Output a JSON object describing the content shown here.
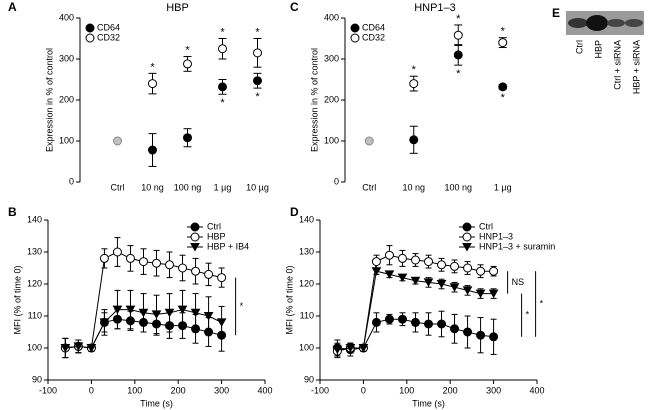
{
  "chart_data": [
    {
      "type": "category-dot",
      "panel": "A",
      "title": "HBP",
      "ylabel": "Expression in % of control",
      "categories": [
        "Ctrl",
        "10 ng",
        "100 ng",
        "1 µg",
        "10 µg"
      ],
      "ylim": [
        0,
        400
      ],
      "yticks": [
        0,
        100,
        200,
        300,
        400
      ],
      "control": {
        "value": 100,
        "color": "#c0c0c0"
      },
      "series": [
        {
          "name": "CD64",
          "marker": "circle-filled",
          "color": "#000000",
          "values": [
            null,
            78,
            108,
            232,
            247
          ],
          "errors": [
            null,
            40,
            22,
            18,
            18
          ],
          "significance": [
            null,
            null,
            null,
            "*",
            "*"
          ]
        },
        {
          "name": "CD32",
          "marker": "circle-open",
          "color": "#000000",
          "values": [
            null,
            240,
            288,
            325,
            315
          ],
          "errors": [
            null,
            25,
            18,
            25,
            35
          ],
          "significance": [
            null,
            "*",
            "*",
            "*",
            "*"
          ]
        }
      ]
    },
    {
      "type": "category-dot",
      "panel": "C",
      "title": "HNP1–3",
      "ylabel": "Expression in % of control",
      "categories": [
        "Ctrl",
        "10 ng",
        "100 ng",
        "1 µg"
      ],
      "ylim": [
        0,
        400
      ],
      "yticks": [
        0,
        100,
        200,
        300,
        400
      ],
      "control": {
        "value": 100,
        "color": "#c0c0c0"
      },
      "series": [
        {
          "name": "CD64",
          "marker": "circle-filled",
          "color": "#000000",
          "values": [
            null,
            103,
            310,
            232
          ],
          "errors": [
            null,
            33,
            25,
            5
          ],
          "significance": [
            null,
            null,
            "*",
            "*"
          ]
        },
        {
          "name": "CD32",
          "marker": "circle-open",
          "color": "#000000",
          "values": [
            null,
            240,
            358,
            340
          ],
          "errors": [
            null,
            18,
            25,
            12
          ],
          "significance": [
            null,
            "*",
            "*",
            "*"
          ]
        }
      ]
    },
    {
      "type": "line",
      "panel": "B",
      "xlabel": "Time (s)",
      "ylabel": "MFI (% of time 0)",
      "x": [
        -60,
        -30,
        0,
        30,
        60,
        90,
        120,
        150,
        180,
        210,
        240,
        270,
        300
      ],
      "xlim": [
        -100,
        400
      ],
      "xticks": [
        -100,
        0,
        100,
        200,
        300,
        400
      ],
      "ylim": [
        90,
        140
      ],
      "yticks": [
        90,
        100,
        110,
        120,
        130,
        140
      ],
      "series": [
        {
          "name": "Ctrl",
          "marker": "circle-filled",
          "color": "#000000",
          "values": [
            100,
            100.5,
            100,
            108,
            109,
            108.5,
            108,
            107.5,
            107,
            107,
            106,
            105,
            104
          ],
          "errors": [
            3,
            2,
            1,
            3,
            3,
            3,
            3,
            3.5,
            4,
            4,
            4.5,
            4.5,
            5
          ]
        },
        {
          "name": "HBP",
          "marker": "circle-open",
          "color": "#000000",
          "values": [
            100,
            100.5,
            100,
            128,
            130,
            128,
            127,
            126.5,
            126,
            125,
            124,
            123,
            122
          ],
          "errors": [
            3,
            2,
            1,
            3,
            4.5,
            4,
            4,
            4,
            4,
            4,
            4,
            3.5,
            3
          ]
        },
        {
          "name": "HBP + IB4",
          "marker": "triangle-down",
          "color": "#000000",
          "values": [
            100,
            100.5,
            100,
            108,
            112,
            112,
            111,
            110.5,
            111,
            112,
            111,
            110,
            108
          ],
          "errors": [
            3,
            2,
            1,
            4,
            6,
            6,
            6,
            6,
            6,
            6,
            6,
            6,
            5
          ]
        }
      ],
      "brackets": [
        {
          "between": [
            "HBP",
            "Ctrl"
          ],
          "label": "*"
        }
      ]
    },
    {
      "type": "line",
      "panel": "D",
      "xlabel": "Time (s)",
      "ylabel": "MFI (% of time 0)",
      "x": [
        -60,
        -30,
        0,
        30,
        60,
        90,
        120,
        150,
        180,
        210,
        240,
        270,
        300
      ],
      "xlim": [
        -100,
        400
      ],
      "xticks": [
        -100,
        0,
        100,
        200,
        300,
        400
      ],
      "ylim": [
        90,
        140
      ],
      "yticks": [
        90,
        100,
        110,
        120,
        130,
        140
      ],
      "series": [
        {
          "name": "Ctrl",
          "marker": "circle-filled",
          "color": "#000000",
          "values": [
            100,
            99.5,
            100,
            108,
            109,
            109,
            108,
            107.5,
            107.5,
            106,
            105,
            104,
            103.5
          ],
          "errors": [
            2.5,
            2,
            1,
            3,
            1.5,
            2,
            3,
            3.5,
            4,
            4.5,
            5,
            5.5,
            5.5
          ]
        },
        {
          "name": "HNP1–3",
          "marker": "circle-open",
          "color": "#000000",
          "values": [
            99,
            100,
            100,
            127,
            129,
            128,
            127.5,
            127,
            126,
            125.5,
            125,
            124,
            124
          ],
          "errors": [
            2,
            1.5,
            1,
            2,
            3,
            2.5,
            2,
            2,
            2,
            2,
            2,
            2,
            1.5
          ]
        },
        {
          "name": "HNP1–3 + suramin",
          "marker": "triangle-down",
          "color": "#000000",
          "values": [
            99.5,
            100,
            100,
            124,
            123,
            122,
            121,
            120.5,
            120,
            119,
            118,
            117,
            117
          ],
          "errors": [
            2,
            1.5,
            1,
            1,
            1,
            1,
            1,
            1.5,
            1.5,
            1.5,
            1.5,
            1.5,
            1.5
          ]
        }
      ],
      "brackets": [
        {
          "between": [
            "HNP1–3",
            "HNP1–3 + suramin"
          ],
          "label": "NS"
        },
        {
          "between": [
            "HNP1–3 + suramin",
            "Ctrl"
          ],
          "label": "*"
        },
        {
          "between": [
            "HNP1–3",
            "Ctrl"
          ],
          "label": "*"
        }
      ]
    }
  ],
  "blot": {
    "panel": "E",
    "lanes": [
      "Ctrl",
      "HBP",
      "Ctrl + siRNA",
      "HBP + siRNA"
    ]
  }
}
